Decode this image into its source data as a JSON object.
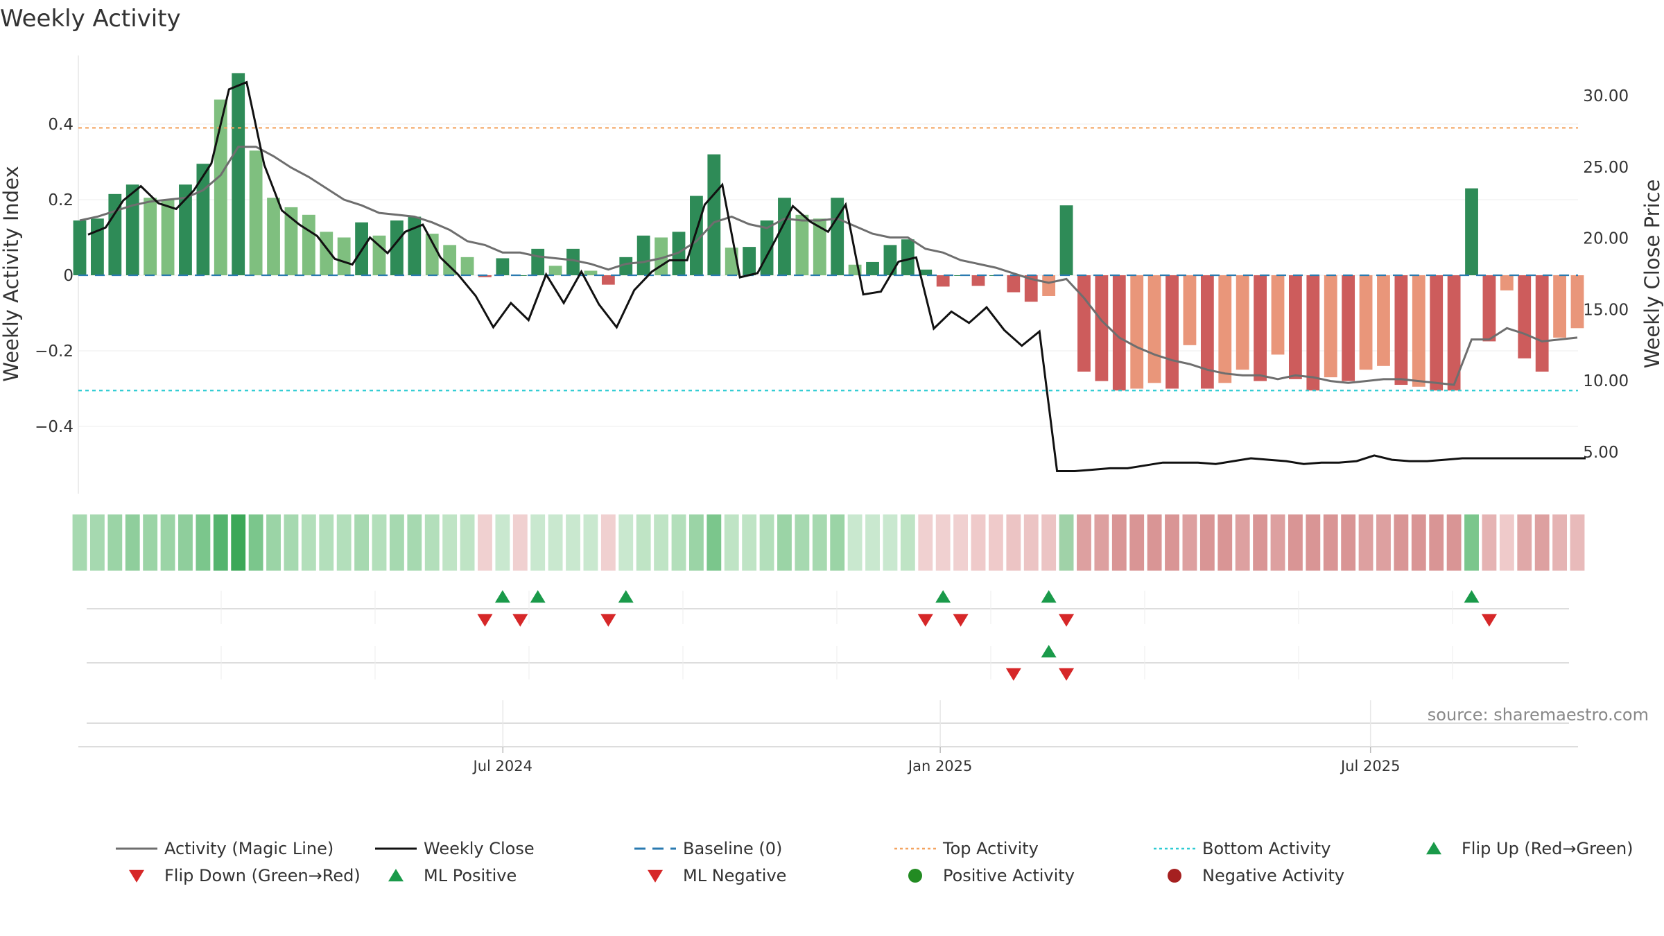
{
  "chart_data": {
    "type": "bar",
    "title": "Weekly Activity",
    "ylabel": "Weekly Activity Index",
    "y2label": "Weekly Close Price",
    "ylim": [
      -0.58,
      0.58
    ],
    "y2lim": [
      2.0,
      33.0
    ],
    "yticks": [
      0.4,
      0.2,
      0,
      -0.2,
      -0.4
    ],
    "ytick_labels": [
      "0.4",
      "0.2",
      "0",
      "−0.2",
      "−0.4"
    ],
    "y2ticks": [
      30,
      25,
      20,
      15,
      10,
      5
    ],
    "y2tick_labels": [
      "30.00",
      "25.00",
      "20.00",
      "15.00",
      "10.00",
      "5.00"
    ],
    "x_start": "2024-01-05",
    "x_end": "2025-09-26",
    "xtick_dates": [
      "2024-07-01",
      "2025-01-01",
      "2025-07-01"
    ],
    "xtick_labels": [
      "Jul 2024",
      "Jan 2025",
      "Jul 2025"
    ],
    "top_activity": 0.39,
    "bottom_activity": -0.305,
    "bar_colors": {
      "dark_green": "#2e8b57",
      "light_green": "#7fbf7f",
      "dark_red": "#cd5c5c",
      "light_red": "#e9967a"
    },
    "activity": [
      0.145,
      0.15,
      0.215,
      0.24,
      0.205,
      0.2,
      0.24,
      0.295,
      0.465,
      0.535,
      0.33,
      0.205,
      0.18,
      0.16,
      0.115,
      0.1,
      0.14,
      0.105,
      0.145,
      0.155,
      0.11,
      0.08,
      0.048,
      -0.005,
      0.045,
      0.0,
      0.07,
      0.025,
      0.07,
      0.012,
      -0.025,
      0.048,
      0.105,
      0.1,
      0.115,
      0.21,
      0.32,
      0.073,
      0.075,
      0.145,
      0.205,
      0.16,
      0.15,
      0.205,
      0.028,
      0.035,
      0.08,
      0.095,
      0.015,
      -0.03,
      0.0,
      -0.028,
      0.0,
      -0.045,
      -0.07,
      -0.055,
      0.185,
      -0.255,
      -0.28,
      -0.305,
      -0.3,
      -0.285,
      -0.3,
      -0.185,
      -0.3,
      -0.285,
      -0.25,
      -0.28,
      -0.21,
      -0.275,
      -0.305,
      -0.27,
      -0.28,
      -0.25,
      -0.24,
      -0.29,
      -0.295,
      -0.305,
      -0.305,
      0.23,
      -0.175,
      -0.04,
      -0.22,
      -0.255,
      -0.165,
      -0.14
    ],
    "bar_shade": [
      "D",
      "D",
      "D",
      "D",
      "L",
      "L",
      "D",
      "D",
      "L",
      "D",
      "L",
      "L",
      "L",
      "L",
      "L",
      "L",
      "D",
      "L",
      "D",
      "D",
      "L",
      "L",
      "L",
      "D",
      "D",
      "D",
      "D",
      "L",
      "D",
      "L",
      "D",
      "D",
      "D",
      "L",
      "D",
      "D",
      "D",
      "L",
      "D",
      "D",
      "D",
      "L",
      "L",
      "D",
      "L",
      "D",
      "D",
      "D",
      "D",
      "D",
      "D",
      "D",
      "D",
      "D",
      "D",
      "L",
      "D",
      "D",
      "D",
      "D",
      "L",
      "L",
      "D",
      "L",
      "D",
      "L",
      "L",
      "D",
      "L",
      "D",
      "D",
      "L",
      "D",
      "L",
      "L",
      "D",
      "L",
      "D",
      "D",
      "D",
      "D",
      "L",
      "D",
      "D",
      "L",
      "L"
    ],
    "magic_line": [
      0.145,
      0.155,
      0.17,
      0.185,
      0.195,
      0.2,
      0.205,
      0.225,
      0.265,
      0.34,
      0.34,
      0.315,
      0.285,
      0.26,
      0.23,
      0.2,
      0.185,
      0.165,
      0.16,
      0.155,
      0.14,
      0.12,
      0.09,
      0.08,
      0.06,
      0.06,
      0.05,
      0.045,
      0.04,
      0.03,
      0.015,
      0.03,
      0.035,
      0.045,
      0.06,
      0.09,
      0.14,
      0.155,
      0.135,
      0.125,
      0.15,
      0.145,
      0.145,
      0.15,
      0.13,
      0.11,
      0.1,
      0.1,
      0.07,
      0.06,
      0.04,
      0.03,
      0.02,
      0.005,
      -0.01,
      -0.02,
      -0.01,
      -0.06,
      -0.12,
      -0.165,
      -0.19,
      -0.21,
      -0.225,
      -0.235,
      -0.25,
      -0.26,
      -0.265,
      -0.265,
      -0.275,
      -0.265,
      -0.27,
      -0.28,
      -0.285,
      -0.28,
      -0.275,
      -0.275,
      -0.28,
      -0.285,
      -0.29,
      -0.17,
      -0.17,
      -0.14,
      -0.155,
      -0.175,
      -0.17,
      -0.165
    ],
    "weekly_close": [
      20.2,
      20.7,
      22.6,
      23.6,
      22.4,
      22.0,
      23.3,
      25.2,
      30.4,
      30.9,
      25.1,
      21.9,
      20.9,
      20.1,
      18.5,
      18.1,
      20.0,
      18.9,
      20.4,
      20.9,
      18.6,
      17.4,
      15.9,
      13.7,
      15.4,
      14.2,
      17.4,
      15.4,
      17.6,
      15.3,
      13.7,
      16.3,
      17.6,
      18.4,
      18.4,
      22.3,
      23.7,
      17.2,
      17.5,
      19.8,
      22.2,
      21.1,
      20.4,
      22.3,
      16.0,
      16.2,
      18.3,
      18.6,
      13.6,
      14.8,
      14.0,
      15.1,
      13.5,
      12.4,
      13.4,
      3.6,
      3.6,
      3.7,
      3.8,
      3.8,
      4.0,
      4.2,
      4.2,
      4.2,
      4.1,
      4.3,
      4.5,
      4.4,
      4.3,
      4.1,
      4.2,
      4.2,
      4.3,
      4.7,
      4.4,
      4.3,
      4.3,
      4.4,
      4.5,
      4.5,
      4.5,
      4.5,
      4.5,
      4.5,
      4.5,
      4.5
    ],
    "strip_colors": [
      "#a6d9b0",
      "#a6d9b0",
      "#9bd4a6",
      "#8fce9c",
      "#9bd4a6",
      "#9bd4a6",
      "#8fce9c",
      "#7bc68c",
      "#55b46e",
      "#3ca858",
      "#7bc68c",
      "#9bd4a6",
      "#a6d9b0",
      "#b3dfbb",
      "#b3dfbb",
      "#b3dfbb",
      "#a6d9b0",
      "#b3dfbb",
      "#a6d9b0",
      "#a6d9b0",
      "#b3dfbb",
      "#bfe4c5",
      "#bfe4c5",
      "#f0d0d0",
      "#c9e8cf",
      "#f0d0d0",
      "#c9e8cf",
      "#c9e8cf",
      "#c9e8cf",
      "#c9e8cf",
      "#f0d0d0",
      "#c9e8cf",
      "#bfe4c5",
      "#bfe4c5",
      "#b3dfbb",
      "#9bd4a6",
      "#7bc68c",
      "#bfe4c5",
      "#bfe4c5",
      "#b3dfbb",
      "#9bd4a6",
      "#a6d9b0",
      "#a6d9b0",
      "#9bd4a6",
      "#c9e8cf",
      "#c9e8cf",
      "#c9e8cf",
      "#bfe4c5",
      "#f0d0d0",
      "#f0d0d0",
      "#f0d0d0",
      "#efcaca",
      "#efcaca",
      "#ecc4c4",
      "#ecc4c4",
      "#ecc4c4",
      "#a0d2a8",
      "#dda0a0",
      "#dda0a0",
      "#d99595",
      "#d99595",
      "#d99595",
      "#d99595",
      "#dda0a0",
      "#d99595",
      "#d99595",
      "#dda0a0",
      "#d99595",
      "#dda0a0",
      "#d99595",
      "#d99595",
      "#d99595",
      "#d99595",
      "#dda0a0",
      "#dda0a0",
      "#d99595",
      "#d99595",
      "#d99595",
      "#d99595",
      "#7bc68c",
      "#e5b3b3",
      "#efcaca",
      "#e0a8a8",
      "#dda0a0",
      "#e5b3b3",
      "#e8baba"
    ],
    "flip_up": [
      24,
      26,
      31,
      49,
      55,
      79
    ],
    "flip_down": [
      23,
      25,
      30,
      48,
      50,
      56,
      80
    ],
    "ml_positive": [
      55
    ],
    "ml_negative": [
      53,
      56
    ],
    "source": "source: sharemaestro.com",
    "legend": [
      {
        "label": "Activity (Magic Line)",
        "kind": "line",
        "color": "#6e6e6e"
      },
      {
        "label": "Weekly Close",
        "kind": "line",
        "color": "#111111"
      },
      {
        "label": "Baseline (0)",
        "kind": "dash",
        "color": "#2a7ab0"
      },
      {
        "label": "Top Activity",
        "kind": "dot",
        "color": "#f4a460"
      },
      {
        "label": "Bottom Activity",
        "kind": "dot",
        "color": "#2ecbd3"
      },
      {
        "label": "Flip Up (Red→Green)",
        "kind": "up",
        "color": "#1a9a4a"
      },
      {
        "label": "Flip Down (Green→Red)",
        "kind": "down",
        "color": "#d62728"
      },
      {
        "label": "ML Positive",
        "kind": "up",
        "color": "#1a9a4a"
      },
      {
        "label": "ML Negative",
        "kind": "down",
        "color": "#d62728"
      },
      {
        "label": "Positive Activity",
        "kind": "circle",
        "color": "#228b22"
      },
      {
        "label": "Negative Activity",
        "kind": "circle",
        "color": "#a52020"
      }
    ]
  }
}
